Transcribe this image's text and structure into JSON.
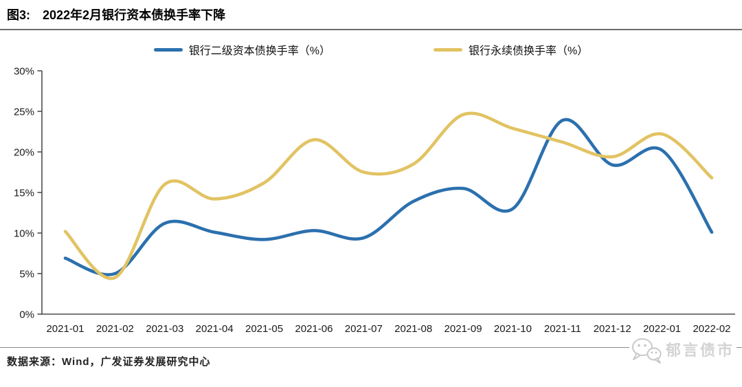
{
  "header": {
    "figure_label": "图3:",
    "title": "2022年2月银行资本债换手率下降"
  },
  "footer": {
    "source_label": "数据来源：",
    "source_text": "Wind，广发证券发展研究中心"
  },
  "watermark": {
    "text": "郁言债市",
    "icon": "wechat-icon"
  },
  "colors": {
    "axis": "#4d4d4d",
    "tick_label": "#1a1a1a",
    "rule_dark": "#6b6b6b",
    "rule_light": "#8a8a8a",
    "watermark_gray": "#cccccc"
  },
  "chart_data": {
    "type": "line",
    "smooth": true,
    "legend_position": "top",
    "x": [
      "2021-01",
      "2021-02",
      "2021-03",
      "2021-04",
      "2021-05",
      "2021-06",
      "2021-07",
      "2021-08",
      "2021-09",
      "2021-10",
      "2021-11",
      "2021-12",
      "2022-01",
      "2022-02"
    ],
    "series": [
      {
        "name": "银行二级资本债换手率（%）",
        "color": "#2C70AE",
        "values": [
          6.9,
          5.0,
          11.2,
          10.1,
          9.2,
          10.3,
          9.4,
          13.9,
          15.5,
          13.0,
          23.9,
          18.4,
          20.2,
          10.1
        ]
      },
      {
        "name": "银行永续债换手率（%）",
        "color": "#E2C363",
        "values": [
          10.2,
          4.5,
          16.0,
          14.2,
          16.2,
          21.5,
          17.5,
          18.5,
          24.6,
          22.9,
          21.2,
          19.4,
          22.2,
          16.8
        ]
      }
    ],
    "ylim": [
      0,
      30
    ],
    "ytick_step": 5,
    "ytick_suffix": "%",
    "xlabel": "",
    "ylabel": "",
    "grid": false
  }
}
